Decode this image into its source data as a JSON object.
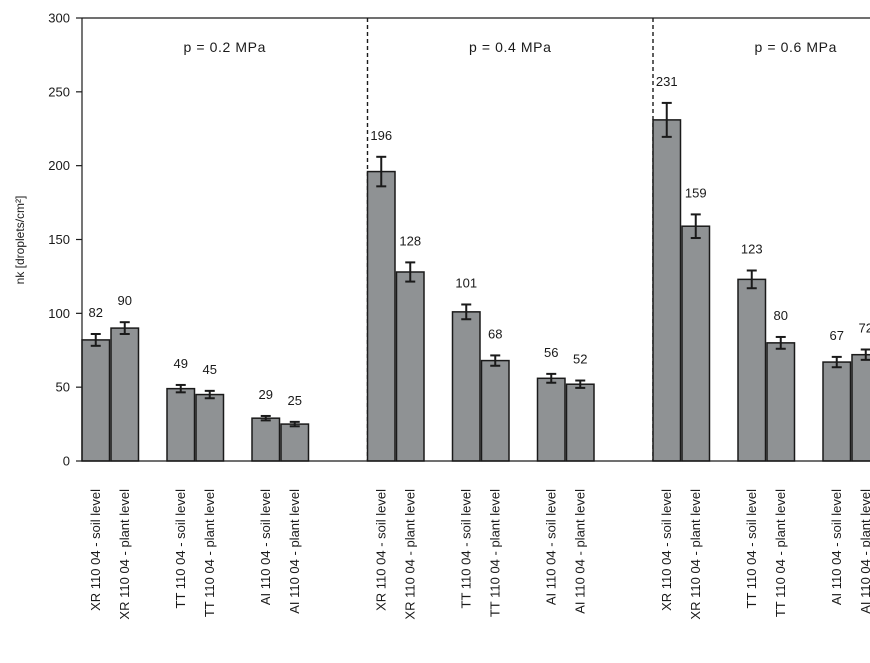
{
  "chart_data": {
    "type": "bar",
    "ylabel": "nk [droplets/cm²]",
    "ylim": [
      0,
      300
    ],
    "yticks": [
      0,
      50,
      100,
      150,
      200,
      250,
      300
    ],
    "grid": false,
    "legend": "none",
    "colors": {
      "bar": "#8f9294",
      "outline": "#1a1a1a"
    },
    "groups": [
      {
        "label": "p = 0.2 MPa",
        "bars": [
          {
            "category": "XR 110 04 - soil level",
            "value": 82,
            "error": 4,
            "label": "82"
          },
          {
            "category": "XR 110 04 - plant level",
            "value": 90,
            "error": 4,
            "label": "90"
          },
          {
            "category": "TT 110 04 - soil level",
            "value": 49,
            "error": 2.5,
            "label": "49"
          },
          {
            "category": "TT 110 04 - plant level",
            "value": 45,
            "error": 2.5,
            "label": "45"
          },
          {
            "category": "AI 110 04 - soil level",
            "value": 29,
            "error": 1.5,
            "label": "29"
          },
          {
            "category": "AI 110 04 - plant level",
            "value": 25,
            "error": 1.5,
            "label": "25"
          }
        ]
      },
      {
        "label": "p = 0.4 MPa",
        "bars": [
          {
            "category": "XR 110 04 - soil level",
            "value": 196,
            "error": 10,
            "label": "196"
          },
          {
            "category": "XR 110 04 - plant level",
            "value": 128,
            "error": 6.5,
            "label": "128"
          },
          {
            "category": "TT 110 04 - soil level",
            "value": 101,
            "error": 5,
            "label": "101"
          },
          {
            "category": "TT 110 04 - plant level",
            "value": 68,
            "error": 3.5,
            "label": "68"
          },
          {
            "category": "AI 110 04 - soil level",
            "value": 56,
            "error": 3,
            "label": "56"
          },
          {
            "category": "AI 110 04 - plant level",
            "value": 52,
            "error": 2.5,
            "label": "52"
          }
        ]
      },
      {
        "label": "p = 0.6 MPa",
        "bars": [
          {
            "category": "XR 110 04 - soil level",
            "value": 231,
            "error": 11.5,
            "label": "231"
          },
          {
            "category": "XR 110 04 - plant level",
            "value": 159,
            "error": 8,
            "label": "159"
          },
          {
            "category": "TT 110 04 - soil level",
            "value": 123,
            "error": 6,
            "label": "123"
          },
          {
            "category": "TT 110 04 - plant level",
            "value": 80,
            "error": 4,
            "label": "80"
          },
          {
            "category": "AI 110 04 - soil level",
            "value": 67,
            "error": 3.5,
            "label": "67"
          },
          {
            "category": "AI 110 04 - plant level",
            "value": 72,
            "error": 3.5,
            "label": "72"
          }
        ]
      }
    ]
  }
}
